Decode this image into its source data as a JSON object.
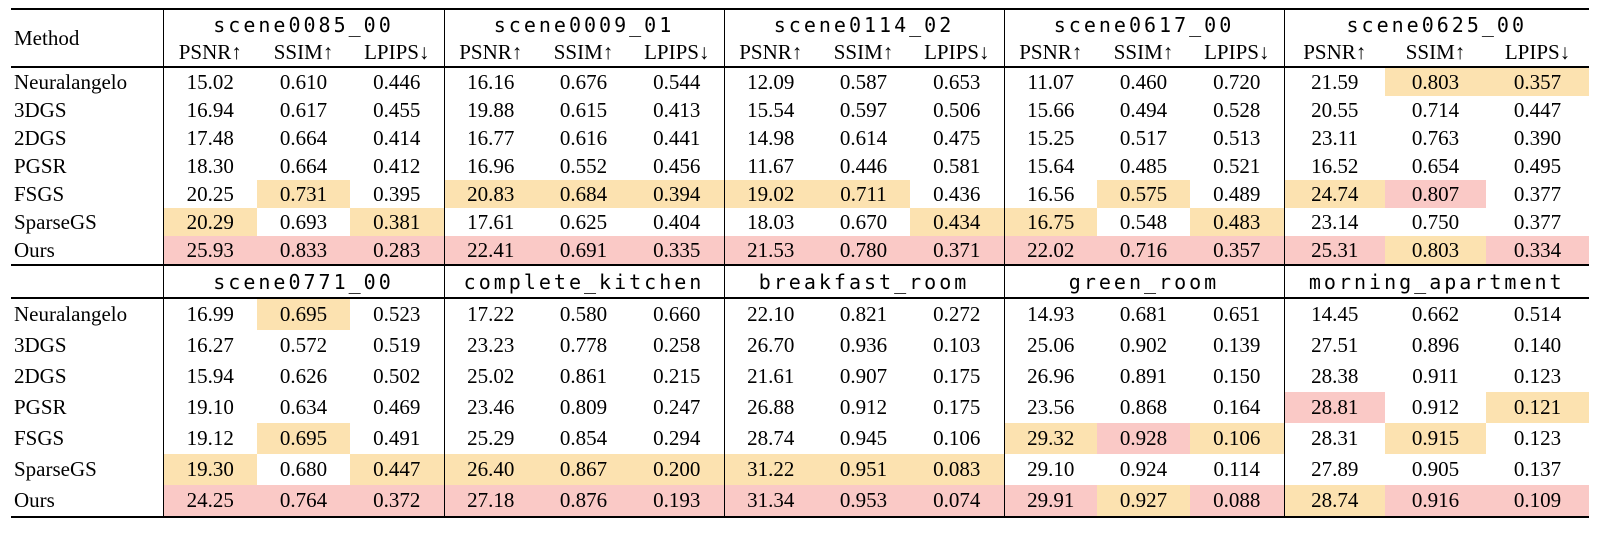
{
  "table": {
    "method_header": "Method",
    "metric_labels": [
      "PSNR↑",
      "SSIM↑",
      "LPIPS↓"
    ],
    "highlight_colors": {
      "best": "#FAC9C6",
      "second_best": "#FCE2B0"
    },
    "highlight_legend": {
      "p": "best",
      "o": "second_best"
    },
    "sections": [
      {
        "scenes": [
          "scene0085_00",
          "scene0009_01",
          "scene0114_02",
          "scene0617_00",
          "scene0625_00"
        ],
        "rows": [
          {
            "method": "Neuralangelo",
            "values": [
              "15.02",
              "0.610",
              "0.446",
              "16.16",
              "0.676",
              "0.544",
              "12.09",
              "0.587",
              "0.653",
              "11.07",
              "0.460",
              "0.720",
              "21.59",
              "0.803",
              "0.357"
            ],
            "highlights": [
              "",
              "",
              "",
              "",
              "",
              "",
              "",
              "",
              "",
              "",
              "",
              "",
              "",
              "o",
              "o"
            ]
          },
          {
            "method": "3DGS",
            "values": [
              "16.94",
              "0.617",
              "0.455",
              "19.88",
              "0.615",
              "0.413",
              "15.54",
              "0.597",
              "0.506",
              "15.66",
              "0.494",
              "0.528",
              "20.55",
              "0.714",
              "0.447"
            ],
            "highlights": [
              "",
              "",
              "",
              "",
              "",
              "",
              "",
              "",
              "",
              "",
              "",
              "",
              "",
              "",
              ""
            ]
          },
          {
            "method": "2DGS",
            "values": [
              "17.48",
              "0.664",
              "0.414",
              "16.77",
              "0.616",
              "0.441",
              "14.98",
              "0.614",
              "0.475",
              "15.25",
              "0.517",
              "0.513",
              "23.11",
              "0.763",
              "0.390"
            ],
            "highlights": [
              "",
              "",
              "",
              "",
              "",
              "",
              "",
              "",
              "",
              "",
              "",
              "",
              "",
              "",
              ""
            ]
          },
          {
            "method": "PGSR",
            "values": [
              "18.30",
              "0.664",
              "0.412",
              "16.96",
              "0.552",
              "0.456",
              "11.67",
              "0.446",
              "0.581",
              "15.64",
              "0.485",
              "0.521",
              "16.52",
              "0.654",
              "0.495"
            ],
            "highlights": [
              "",
              "",
              "",
              "",
              "",
              "",
              "",
              "",
              "",
              "",
              "",
              "",
              "",
              "",
              ""
            ]
          },
          {
            "method": "FSGS",
            "values": [
              "20.25",
              "0.731",
              "0.395",
              "20.83",
              "0.684",
              "0.394",
              "19.02",
              "0.711",
              "0.436",
              "16.56",
              "0.575",
              "0.489",
              "24.74",
              "0.807",
              "0.377"
            ],
            "highlights": [
              "",
              "o",
              "",
              "o",
              "o",
              "o",
              "o",
              "o",
              "",
              "",
              "o",
              "",
              "o",
              "p",
              ""
            ]
          },
          {
            "method": "SparseGS",
            "values": [
              "20.29",
              "0.693",
              "0.381",
              "17.61",
              "0.625",
              "0.404",
              "18.03",
              "0.670",
              "0.434",
              "16.75",
              "0.548",
              "0.483",
              "23.14",
              "0.750",
              "0.377"
            ],
            "highlights": [
              "o",
              "",
              "o",
              "",
              "",
              "",
              "",
              "",
              "o",
              "o",
              "",
              "o",
              "",
              "",
              ""
            ]
          },
          {
            "method": "Ours",
            "values": [
              "25.93",
              "0.833",
              "0.283",
              "22.41",
              "0.691",
              "0.335",
              "21.53",
              "0.780",
              "0.371",
              "22.02",
              "0.716",
              "0.357",
              "25.31",
              "0.803",
              "0.334"
            ],
            "highlights": [
              "p",
              "p",
              "p",
              "p",
              "p",
              "p",
              "p",
              "p",
              "p",
              "p",
              "p",
              "p",
              "p",
              "o",
              "p"
            ]
          }
        ]
      },
      {
        "scenes": [
          "scene0771_00",
          "complete_kitchen",
          "breakfast_room",
          "green_room",
          "morning_apartment"
        ],
        "rows": [
          {
            "method": "Neuralangelo",
            "values": [
              "16.99",
              "0.695",
              "0.523",
              "17.22",
              "0.580",
              "0.660",
              "22.10",
              "0.821",
              "0.272",
              "14.93",
              "0.681",
              "0.651",
              "14.45",
              "0.662",
              "0.514"
            ],
            "highlights": [
              "",
              "o",
              "",
              "",
              "",
              "",
              "",
              "",
              "",
              "",
              "",
              "",
              "",
              "",
              ""
            ]
          },
          {
            "method": "3DGS",
            "values": [
              "16.27",
              "0.572",
              "0.519",
              "23.23",
              "0.778",
              "0.258",
              "26.70",
              "0.936",
              "0.103",
              "25.06",
              "0.902",
              "0.139",
              "27.51",
              "0.896",
              "0.140"
            ],
            "highlights": [
              "",
              "",
              "",
              "",
              "",
              "",
              "",
              "",
              "",
              "",
              "",
              "",
              "",
              "",
              ""
            ]
          },
          {
            "method": "2DGS",
            "values": [
              "15.94",
              "0.626",
              "0.502",
              "25.02",
              "0.861",
              "0.215",
              "21.61",
              "0.907",
              "0.175",
              "26.96",
              "0.891",
              "0.150",
              "28.38",
              "0.911",
              "0.123"
            ],
            "highlights": [
              "",
              "",
              "",
              "",
              "",
              "",
              "",
              "",
              "",
              "",
              "",
              "",
              "",
              "",
              ""
            ]
          },
          {
            "method": "PGSR",
            "values": [
              "19.10",
              "0.634",
              "0.469",
              "23.46",
              "0.809",
              "0.247",
              "26.88",
              "0.912",
              "0.175",
              "23.56",
              "0.868",
              "0.164",
              "28.81",
              "0.912",
              "0.121"
            ],
            "highlights": [
              "",
              "",
              "",
              "",
              "",
              "",
              "",
              "",
              "",
              "",
              "",
              "",
              "p",
              "",
              "o"
            ]
          },
          {
            "method": "FSGS",
            "values": [
              "19.12",
              "0.695",
              "0.491",
              "25.29",
              "0.854",
              "0.294",
              "28.74",
              "0.945",
              "0.106",
              "29.32",
              "0.928",
              "0.106",
              "28.31",
              "0.915",
              "0.123"
            ],
            "highlights": [
              "",
              "o",
              "",
              "",
              "",
              "",
              "",
              "",
              "",
              "o",
              "p",
              "o",
              "",
              "o",
              ""
            ]
          },
          {
            "method": "SparseGS",
            "values": [
              "19.30",
              "0.680",
              "0.447",
              "26.40",
              "0.867",
              "0.200",
              "31.22",
              "0.951",
              "0.083",
              "29.10",
              "0.924",
              "0.114",
              "27.89",
              "0.905",
              "0.137"
            ],
            "highlights": [
              "o",
              "",
              "o",
              "o",
              "o",
              "o",
              "o",
              "o",
              "o",
              "",
              "",
              "",
              "",
              "",
              ""
            ]
          },
          {
            "method": "Ours",
            "values": [
              "24.25",
              "0.764",
              "0.372",
              "27.18",
              "0.876",
              "0.193",
              "31.34",
              "0.953",
              "0.074",
              "29.91",
              "0.927",
              "0.088",
              "28.74",
              "0.916",
              "0.109"
            ],
            "highlights": [
              "p",
              "p",
              "p",
              "p",
              "p",
              "p",
              "p",
              "p",
              "p",
              "p",
              "o",
              "p",
              "o",
              "p",
              "p"
            ]
          }
        ]
      }
    ]
  }
}
